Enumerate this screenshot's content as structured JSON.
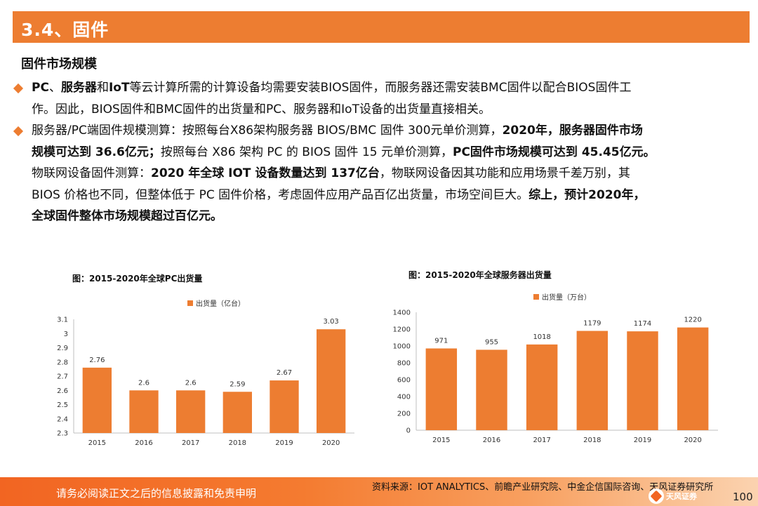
{
  "header": {
    "title": "3.4、固件"
  },
  "subtitle": "固件市场规模",
  "bullets": [
    {
      "segments": [
        {
          "text": "PC",
          "bold": true
        },
        {
          "text": "、",
          "bold": false
        },
        {
          "text": "服务器",
          "bold": true
        },
        {
          "text": "和",
          "bold": false
        },
        {
          "text": "IoT",
          "bold": true
        },
        {
          "text": "等云计算所需的计算设备均需要安装BIOS固件，而服务器还需安装BMC固件以配合BIOS固件工",
          "bold": false
        }
      ],
      "continuation": "作。因此，BIOS固件和BMC固件的出货量和PC、服务器和IoT设备的出货量直接相关。"
    },
    {
      "line1_segments": [
        {
          "text": "服务器/PC端固件规模测算：按照每台X86架构服务器 BIOS/BMC 固件 300元单价测算，",
          "bold": false
        },
        {
          "text": "2020年，服务器固件市场",
          "bold": true
        }
      ],
      "line2_segments": [
        {
          "text": "规模可达到 36.6亿元；",
          "bold": true
        },
        {
          "text": "按照每台 X86 架构 PC 的 BIOS 固件 15 元单价测算，",
          "bold": false
        },
        {
          "text": "PC固件市场规模可达到 45.45亿元。",
          "bold": true
        }
      ]
    }
  ],
  "paragraph": {
    "line1_segments": [
      {
        "text": "物联网设备固件测算：",
        "bold": false
      },
      {
        "text": "2020 年全球 IOT 设备数量达到 137亿台",
        "bold": true
      },
      {
        "text": "，物联网设备因其功能和应用场景千差万别，其",
        "bold": false
      }
    ],
    "line2_segments": [
      {
        "text": "BIOS 价格也不同，但整体低于 PC 固件价格，考虑固件应用产品百亿出货量，市场空间巨大。",
        "bold": false
      },
      {
        "text": "综上，预计2020年，",
        "bold": true
      }
    ],
    "line3_segments": [
      {
        "text": "全球固件整体市场规模超过百亿元。",
        "bold": true
      }
    ]
  },
  "chart_data": [
    {
      "type": "bar",
      "title": "图：2015-2020年全球PC出货量",
      "categories": [
        "2015",
        "2016",
        "2017",
        "2018",
        "2019",
        "2020"
      ],
      "series": [
        {
          "name": "出货量（亿台）",
          "values": [
            2.76,
            2.6,
            2.6,
            2.59,
            2.67,
            3.03
          ]
        }
      ],
      "value_labels": [
        "2.76",
        "2.6",
        "2.6",
        "2.59",
        "2.67",
        "3.03"
      ],
      "ylim": [
        2.3,
        3.1
      ],
      "yticks": [
        "3.1",
        "3",
        "2.9",
        "2.8",
        "2.7",
        "2.6",
        "2.5",
        "2.4",
        "2.3"
      ],
      "ytick_values": [
        3.1,
        3.0,
        2.9,
        2.8,
        2.7,
        2.6,
        2.5,
        2.4,
        2.3
      ],
      "grid": false,
      "legend": "top",
      "color": "#ED7D31"
    },
    {
      "type": "bar",
      "title": "图：2015-2020年全球服务器出货量",
      "categories": [
        "2015",
        "2016",
        "2017",
        "2018",
        "2019",
        "2020"
      ],
      "series": [
        {
          "name": "出货量（万台）",
          "values": [
            971,
            955,
            1018,
            1179,
            1174,
            1220
          ]
        }
      ],
      "value_labels": [
        "971",
        "955",
        "1018",
        "1179",
        "1174",
        "1220"
      ],
      "ylim": [
        0,
        1400
      ],
      "yticks": [
        "1400",
        "1200",
        "1000",
        "800",
        "600",
        "400",
        "200",
        "0"
      ],
      "ytick_values": [
        1400,
        1200,
        1000,
        800,
        600,
        400,
        200,
        0
      ],
      "grid": false,
      "legend": "top",
      "color": "#ED7D31"
    }
  ],
  "footer": {
    "disclaimer": "请务必阅读正文之后的信息披露和免责申明",
    "source": "资料来源：IOT ANALYTICS、前瞻产业研究院、中金企信国际咨询、天风证券研究所",
    "logo_text": "天风证券",
    "page_number": "100"
  }
}
